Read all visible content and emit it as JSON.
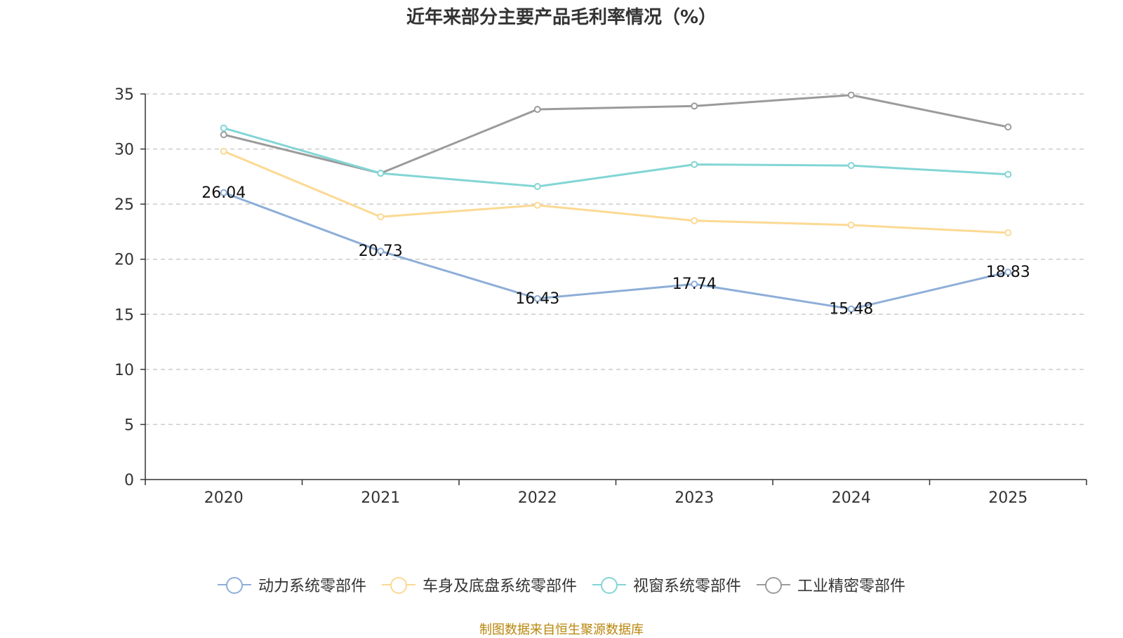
{
  "chart_data": {
    "type": "line",
    "title": "近年来部分主要产品毛利率情况（%）",
    "categories": [
      "2020",
      "2021",
      "2022",
      "2023",
      "2024",
      "2025"
    ],
    "ylim": [
      0,
      35
    ],
    "yticks": [
      "0",
      "5",
      "10",
      "15",
      "20",
      "25",
      "30",
      "35"
    ],
    "grid": true,
    "legend_position": "bottom",
    "series": [
      {
        "name": "动力系统零部件",
        "color": "#8eaed8",
        "values": [
          26.04,
          20.73,
          16.43,
          17.74,
          15.48,
          18.83
        ],
        "labels": [
          "26.04",
          "20.73",
          "16.43",
          "17.74",
          "15.48",
          "18.83"
        ]
      },
      {
        "name": "车身及底盘系统零部件",
        "color": "#fcd993",
        "values": [
          29.8,
          23.85,
          24.9,
          23.5,
          23.1,
          22.4
        ]
      },
      {
        "name": "视窗系统零部件",
        "color": "#83d5d5",
        "values": [
          31.9,
          27.8,
          26.6,
          28.6,
          28.5,
          27.7
        ]
      },
      {
        "name": "工业精密零部件",
        "color": "#9b9b9b",
        "values": [
          31.3,
          27.8,
          33.6,
          33.9,
          34.9,
          32.0
        ]
      }
    ]
  },
  "footer": {
    "source": "制图数据来自恒生聚源数据库"
  }
}
